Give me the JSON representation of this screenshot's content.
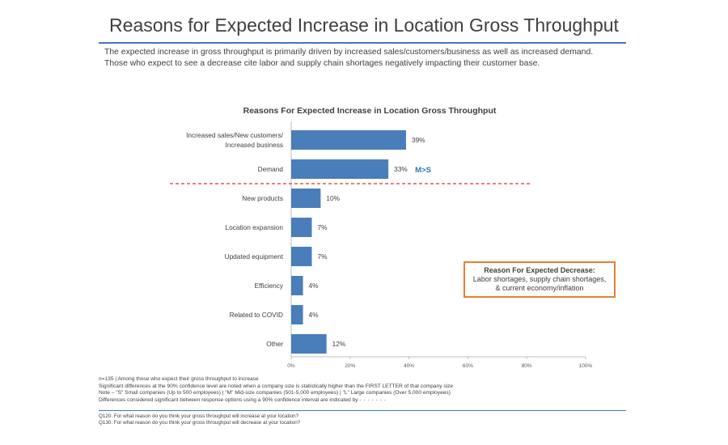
{
  "page": {
    "title": "Reasons for Expected Increase in Location Gross Throughput",
    "subtitle_line1": "The expected increase in gross throughput is primarily driven by increased sales/customers/business as well as increased demand.",
    "subtitle_line2": "Those who expect to see a decrease cite labor and supply chain shortages negatively impacting their customer base."
  },
  "chart_data": {
    "type": "bar",
    "orientation": "horizontal",
    "title": "Reasons For Expected Increase in Location Gross Throughput",
    "categories": [
      [
        "Increased sales/New customers/",
        "Increased business"
      ],
      [
        "Demand"
      ],
      [
        "New products"
      ],
      [
        "Location expansion"
      ],
      [
        "Updated equipment"
      ],
      [
        "Efficiency"
      ],
      [
        "Related to COVID"
      ],
      [
        "Other"
      ]
    ],
    "values": [
      39,
      33,
      10,
      7,
      7,
      4,
      4,
      12
    ],
    "value_labels": [
      "39%",
      "33%",
      "10%",
      "7%",
      "7%",
      "4%",
      "4%",
      "12%"
    ],
    "annotations": [
      {
        "category_index": 1,
        "text": "M>S",
        "color": "#2e75b6"
      }
    ],
    "significance_line_after_index": 1,
    "xlim": [
      0,
      100
    ],
    "x_ticks": [
      0,
      20,
      40,
      60,
      80,
      100
    ],
    "x_tick_labels": [
      "0%",
      "20%",
      "40%",
      "60%",
      "80%",
      "100%"
    ],
    "grid": false,
    "bar_color": "#4a7ebb",
    "significance_line_color": "#e0322d"
  },
  "callout": {
    "title": "Reason For Expected Decrease:",
    "line1": "Labor shortages, supply chain shortages,",
    "line2": "& current economy/inflation",
    "border_color": "#ed7d31"
  },
  "footnotes": {
    "line1": "n=135 | Among those who expect their gross throughput to increase",
    "line2": "Significant differences at the 90% confidence level are noted when a company size is statistically higher than the FIRST LETTER of that company size",
    "line3": "Note – \"S\" Small companies (Up to 500 employees) | \"M\" Mid-size companies (501-5,000 employees) | \"L\" Large companies (Over 5,000 employees)",
    "line4": "Differences considered significant between response options using a 90% confidence interval are indicated by",
    "line4_marker": "- - - - - - -"
  },
  "questions": {
    "q1": "Q120. For what reason do you think your gross throughput will increase at your location?",
    "q2": "Q130. For what reason do you think your gross throughput will decrease at your location?"
  }
}
